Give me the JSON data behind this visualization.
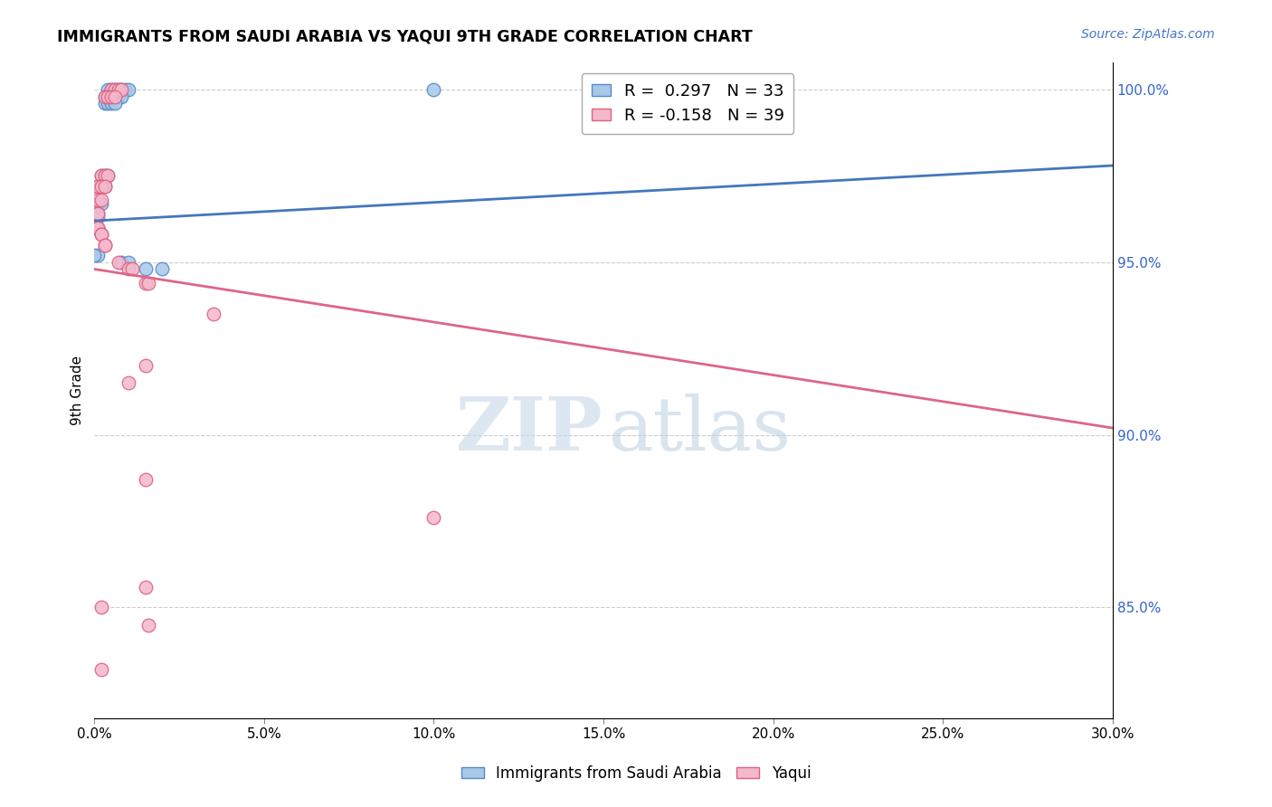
{
  "title": "IMMIGRANTS FROM SAUDI ARABIA VS YAQUI 9TH GRADE CORRELATION CHART",
  "source": "Source: ZipAtlas.com",
  "ylabel": "9th Grade",
  "ytick_vals": [
    1.0,
    0.95,
    0.9,
    0.85
  ],
  "ytick_labels": [
    "100.0%",
    "95.0%",
    "90.0%",
    "85.0%"
  ],
  "xlim": [
    0.0,
    0.3
  ],
  "ylim": [
    0.818,
    1.008
  ],
  "legend_blue_r": "R =  0.297",
  "legend_blue_n": "N = 33",
  "legend_pink_r": "R = -0.158",
  "legend_pink_n": "N = 39",
  "blue_color": "#a8c8e8",
  "pink_color": "#f4b8cc",
  "blue_edge_color": "#5588cc",
  "pink_edge_color": "#e06080",
  "blue_line_color": "#4477bb",
  "pink_line_color": "#dd6688",
  "blue_scatter_x": [
    0.004,
    0.005,
    0.006,
    0.007,
    0.008,
    0.009,
    0.01,
    0.003,
    0.004,
    0.005,
    0.006,
    0.007,
    0.008,
    0.003,
    0.004,
    0.005,
    0.006,
    0.002,
    0.003,
    0.004,
    0.001,
    0.002,
    0.003,
    0.001,
    0.002,
    0.001,
    0.001,
    0.0,
    0.008,
    0.01,
    0.015,
    0.02,
    0.1
  ],
  "blue_scatter_y": [
    1.0,
    1.0,
    1.0,
    1.0,
    1.0,
    1.0,
    1.0,
    0.998,
    0.998,
    0.998,
    0.998,
    0.998,
    0.998,
    0.996,
    0.996,
    0.996,
    0.996,
    0.975,
    0.975,
    0.975,
    0.972,
    0.972,
    0.972,
    0.967,
    0.967,
    0.963,
    0.952,
    0.952,
    0.95,
    0.95,
    0.948,
    0.948,
    1.0
  ],
  "pink_scatter_x": [
    0.005,
    0.006,
    0.007,
    0.008,
    0.003,
    0.004,
    0.005,
    0.006,
    0.002,
    0.003,
    0.004,
    0.001,
    0.002,
    0.003,
    0.001,
    0.002,
    0.001,
    0.001,
    0.001,
    0.001,
    0.001,
    0.002,
    0.002,
    0.003,
    0.003,
    0.007,
    0.01,
    0.011,
    0.015,
    0.016,
    0.035,
    0.015,
    0.01,
    0.015,
    0.015,
    0.016,
    0.1,
    0.002,
    0.002
  ],
  "pink_scatter_y": [
    1.0,
    1.0,
    1.0,
    1.0,
    0.998,
    0.998,
    0.998,
    0.998,
    0.975,
    0.975,
    0.975,
    0.972,
    0.972,
    0.972,
    0.968,
    0.968,
    0.964,
    0.964,
    0.96,
    0.96,
    0.96,
    0.958,
    0.958,
    0.955,
    0.955,
    0.95,
    0.948,
    0.948,
    0.944,
    0.944,
    0.935,
    0.92,
    0.915,
    0.887,
    0.856,
    0.845,
    0.876,
    0.85,
    0.832
  ],
  "blue_line_x0": 0.0,
  "blue_line_x1": 0.3,
  "blue_line_y0": 0.962,
  "blue_line_y1": 0.978,
  "pink_line_x0": 0.0,
  "pink_line_x1": 0.3,
  "pink_line_y0": 0.948,
  "pink_line_y1": 0.902,
  "watermark_zip_color": "#c5d8ea",
  "watermark_atlas_color": "#b8cfe0",
  "background_color": "#ffffff"
}
